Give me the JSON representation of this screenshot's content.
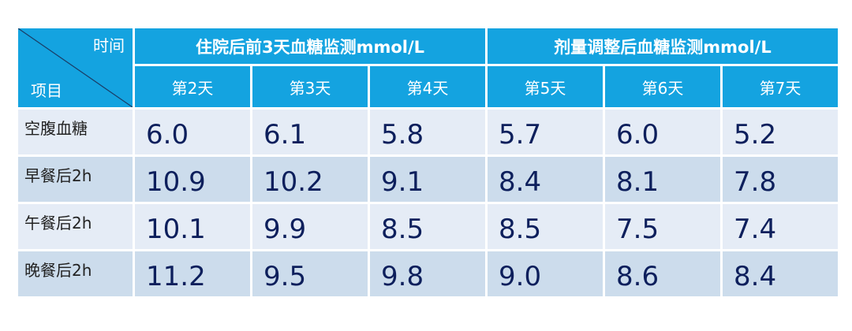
{
  "table": {
    "corner_top": "时间",
    "corner_bottom": "项目",
    "groups": [
      {
        "label": "住院后前3天血糖监测mmol/L"
      },
      {
        "label": "剂量调整后血糖监测mmol/L"
      }
    ],
    "days": [
      "第2天",
      "第3天",
      "第4天",
      "第5天",
      "第6天",
      "第7天"
    ],
    "rows": [
      {
        "label": "空腹血糖",
        "values": [
          "6.0",
          "6.1",
          "5.8",
          "5.7",
          "6.0",
          "5.2"
        ]
      },
      {
        "label": "早餐后2h",
        "values": [
          "10.9",
          "10.2",
          "9.1",
          "8.4",
          "8.1",
          "7.8"
        ]
      },
      {
        "label": "午餐后2h",
        "values": [
          "10.1",
          "9.9",
          "8.5",
          "8.5",
          "7.5",
          "7.4"
        ]
      },
      {
        "label": "晚餐后2h",
        "values": [
          "11.2",
          "9.5",
          "9.8",
          "9.0",
          "8.6",
          "8.4"
        ]
      }
    ],
    "colors": {
      "header": "#14a3e0",
      "row_light": "#e5ecf6",
      "row_dark": "#ccdcec",
      "value_text": "#0d1f5c"
    }
  }
}
